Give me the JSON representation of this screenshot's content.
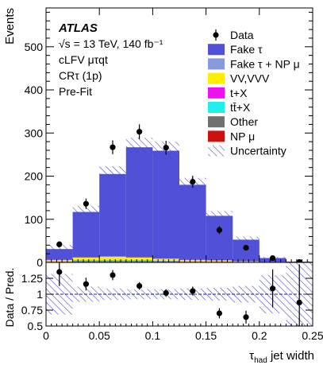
{
  "header": {
    "experiment": "ATLAS",
    "energy_line": "√s = 13 TeV, 140 fb⁻¹",
    "analysis": "cLFV μτqt",
    "region": "CRτ (1p)",
    "stage": "Pre-Fit"
  },
  "chart_data": [
    {
      "type": "bar",
      "panel": "main",
      "stacked": true,
      "ylabel": "Events",
      "xlim": [
        0,
        0.25
      ],
      "ylim": [
        0,
        590
      ],
      "y_ticks": [
        0,
        100,
        200,
        300,
        400,
        500
      ],
      "bin_edges": [
        0,
        0.025,
        0.05,
        0.075,
        0.1,
        0.125,
        0.15,
        0.175,
        0.2,
        0.225,
        0.25
      ],
      "series": [
        {
          "name": "NP μ",
          "color": "#cc1111",
          "values": [
            0.5,
            1,
            1,
            1,
            0.5,
            0.5,
            0.5,
            0.3,
            0.1,
            0.1
          ]
        },
        {
          "name": "Other",
          "color": "#707070",
          "values": [
            1,
            2,
            2,
            2,
            1.5,
            1,
            1,
            0.5,
            0.3,
            0.1
          ]
        },
        {
          "name": "tt̄+X",
          "color": "#22eeee",
          "values": [
            0.5,
            1,
            1,
            1,
            1,
            0.5,
            0.5,
            0.3,
            0.1,
            0.1
          ]
        },
        {
          "name": "t+X",
          "color": "#ee11ee",
          "values": [
            0.5,
            1,
            1,
            1,
            1,
            0.5,
            0.5,
            0.3,
            0.1,
            0.1
          ]
        },
        {
          "name": "VV,VVV",
          "color": "#ffee00",
          "values": [
            3,
            6,
            8,
            6,
            4,
            3,
            2,
            1,
            0.5,
            0.3
          ]
        },
        {
          "name": "Fake τ + NP μ",
          "color": "#8899dd",
          "values": [
            0.5,
            1,
            1,
            1,
            1,
            0.5,
            0.5,
            0.3,
            0.1,
            0.1
          ]
        },
        {
          "name": "Fake τ",
          "color": "#5050d8",
          "values": [
            25,
            105,
            191,
            255,
            250,
            174,
            103,
            50,
            9,
            1
          ]
        }
      ],
      "uncertainty": {
        "name": "Uncertainty",
        "totals": [
          31,
          117,
          205,
          267,
          259,
          180,
          108,
          53,
          10,
          2
        ],
        "half_width": [
          10,
          14,
          18,
          22,
          21,
          16,
          11,
          7,
          3,
          1
        ]
      },
      "data": {
        "name": "Data",
        "x": [
          0.0125,
          0.0375,
          0.0625,
          0.0875,
          0.1125,
          0.1375,
          0.1625,
          0.1875,
          0.2125,
          0.2375
        ],
        "y": [
          42,
          136,
          267,
          303,
          266,
          187,
          75,
          34,
          10,
          1
        ],
        "yerr": [
          7,
          12,
          16,
          17,
          16,
          14,
          9,
          6,
          3,
          1
        ]
      },
      "legend": {
        "position": "top-right",
        "entries": [
          "Data",
          "Fake τ",
          "Fake τ + NP μ",
          "VV,VVV",
          "t+X",
          "tt̄+X",
          "Other",
          "NP μ",
          "Uncertainty"
        ]
      }
    },
    {
      "type": "scatter",
      "panel": "ratio",
      "xlabel": "τ_had jet width",
      "ylabel": "Data / Pred.",
      "xlim": [
        0,
        0.25
      ],
      "ylim": [
        0.5,
        1.5
      ],
      "x_ticks": [
        0,
        0.05,
        0.1,
        0.15,
        0.2,
        0.25
      ],
      "x_tick_labels": [
        "0",
        "0.05",
        "0.1",
        "0.15",
        "0.2",
        "0.25"
      ],
      "y_ticks": [
        0.5,
        0.75,
        1,
        1.25
      ],
      "y_tick_labels": [
        "0.5",
        "0.75",
        "1",
        "1.25"
      ],
      "reference_line": 1,
      "x": [
        0.0125,
        0.0375,
        0.0625,
        0.0875,
        0.1125,
        0.1375,
        0.1625,
        0.1875,
        0.2125,
        0.2375
      ],
      "y": [
        1.35,
        1.16,
        1.3,
        1.13,
        1.02,
        1.05,
        0.7,
        0.64,
        1.09,
        0.87
      ],
      "yerr": [
        0.22,
        0.1,
        0.08,
        0.06,
        0.06,
        0.07,
        0.08,
        0.1,
        0.3,
        0.6
      ],
      "uncertainty_half_width": [
        0.32,
        0.12,
        0.09,
        0.08,
        0.08,
        0.09,
        0.1,
        0.13,
        0.3,
        0.5
      ]
    }
  ]
}
